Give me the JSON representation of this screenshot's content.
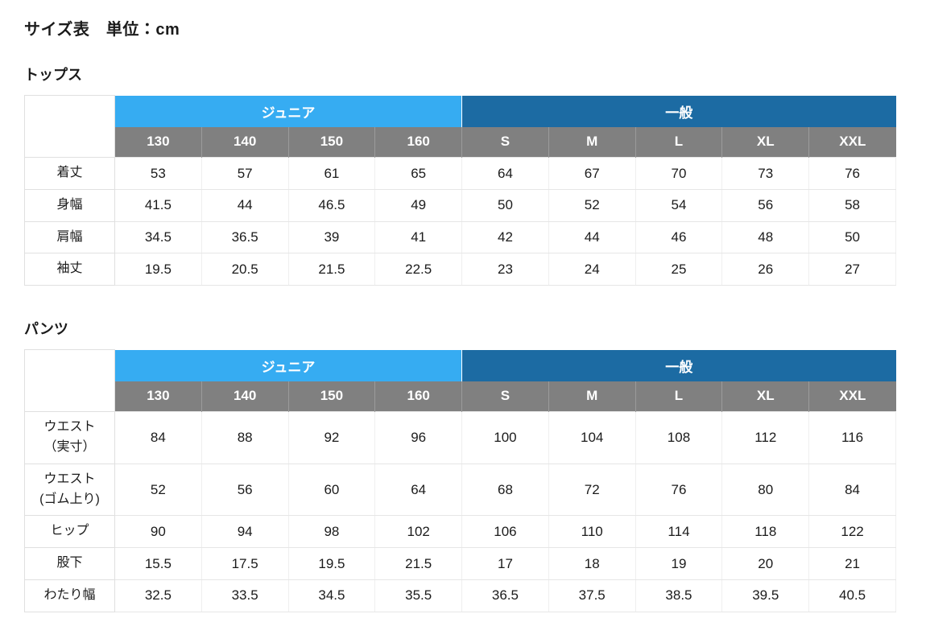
{
  "page": {
    "title": "サイズ表　単位：cm"
  },
  "colors": {
    "junior_header_bg": "#36ACF2",
    "general_header_bg": "#1C6BA3",
    "size_row_bg": "#808080",
    "header_text": "#ffffff",
    "body_text": "#1b1b1b",
    "cell_border": "#e0e0e0"
  },
  "group_headers": {
    "junior": "ジュニア",
    "general": "一般"
  },
  "sizes": [
    "130",
    "140",
    "150",
    "160",
    "S",
    "M",
    "L",
    "XL",
    "XXL"
  ],
  "tops": {
    "section_title": "トップス",
    "rows": [
      {
        "label": "着丈",
        "values": [
          "53",
          "57",
          "61",
          "65",
          "64",
          "67",
          "70",
          "73",
          "76"
        ]
      },
      {
        "label": "身幅",
        "values": [
          "41.5",
          "44",
          "46.5",
          "49",
          "50",
          "52",
          "54",
          "56",
          "58"
        ]
      },
      {
        "label": "肩幅",
        "values": [
          "34.5",
          "36.5",
          "39",
          "41",
          "42",
          "44",
          "46",
          "48",
          "50"
        ]
      },
      {
        "label": "袖丈",
        "values": [
          "19.5",
          "20.5",
          "21.5",
          "22.5",
          "23",
          "24",
          "25",
          "26",
          "27"
        ]
      }
    ]
  },
  "pants": {
    "section_title": "パンツ",
    "rows": [
      {
        "label": "ウエスト\n（実寸）",
        "values": [
          "84",
          "88",
          "92",
          "96",
          "100",
          "104",
          "108",
          "112",
          "116"
        ]
      },
      {
        "label": "ウエスト\n(ゴム上り)",
        "values": [
          "52",
          "56",
          "60",
          "64",
          "68",
          "72",
          "76",
          "80",
          "84"
        ]
      },
      {
        "label": "ヒップ",
        "values": [
          "90",
          "94",
          "98",
          "102",
          "106",
          "110",
          "114",
          "118",
          "122"
        ]
      },
      {
        "label": "股下",
        "values": [
          "15.5",
          "17.5",
          "19.5",
          "21.5",
          "17",
          "18",
          "19",
          "20",
          "21"
        ]
      },
      {
        "label": "わたり幅",
        "values": [
          "32.5",
          "33.5",
          "34.5",
          "35.5",
          "36.5",
          "37.5",
          "38.5",
          "39.5",
          "40.5"
        ]
      }
    ]
  }
}
